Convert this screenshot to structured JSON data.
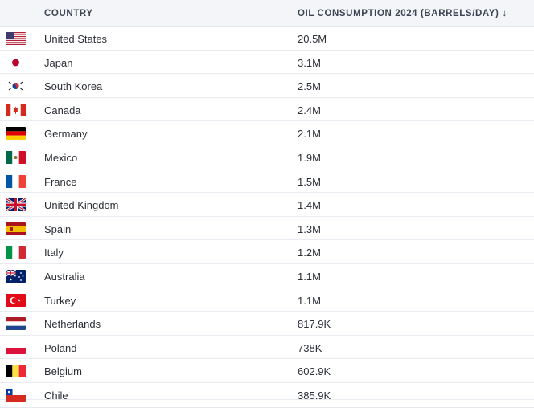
{
  "header": {
    "country_label": "COUNTRY",
    "value_label": "OIL CONSUMPTION 2024 (BARRELS/DAY)",
    "sort_icon": "arrow-down-icon",
    "sort_glyph": "↓"
  },
  "rows": [
    {
      "country": "United States",
      "value": "20.5M",
      "flag": "us-flag-icon"
    },
    {
      "country": "Japan",
      "value": "3.1M",
      "flag": "jp-flag-icon"
    },
    {
      "country": "South Korea",
      "value": "2.5M",
      "flag": "kr-flag-icon"
    },
    {
      "country": "Canada",
      "value": "2.4M",
      "flag": "ca-flag-icon"
    },
    {
      "country": "Germany",
      "value": "2.1M",
      "flag": "de-flag-icon"
    },
    {
      "country": "Mexico",
      "value": "1.9M",
      "flag": "mx-flag-icon"
    },
    {
      "country": "France",
      "value": "1.5M",
      "flag": "fr-flag-icon"
    },
    {
      "country": "United Kingdom",
      "value": "1.4M",
      "flag": "gb-flag-icon"
    },
    {
      "country": "Spain",
      "value": "1.3M",
      "flag": "es-flag-icon"
    },
    {
      "country": "Italy",
      "value": "1.2M",
      "flag": "it-flag-icon"
    },
    {
      "country": "Australia",
      "value": "1.1M",
      "flag": "au-flag-icon"
    },
    {
      "country": "Turkey",
      "value": "1.1M",
      "flag": "tr-flag-icon"
    },
    {
      "country": "Netherlands",
      "value": "817.9K",
      "flag": "nl-flag-icon"
    },
    {
      "country": "Poland",
      "value": "738K",
      "flag": "pl-flag-icon"
    },
    {
      "country": "Belgium",
      "value": "602.9K",
      "flag": "be-flag-icon"
    },
    {
      "country": "Chile",
      "value": "385.9K",
      "flag": "cl-flag-icon"
    }
  ]
}
